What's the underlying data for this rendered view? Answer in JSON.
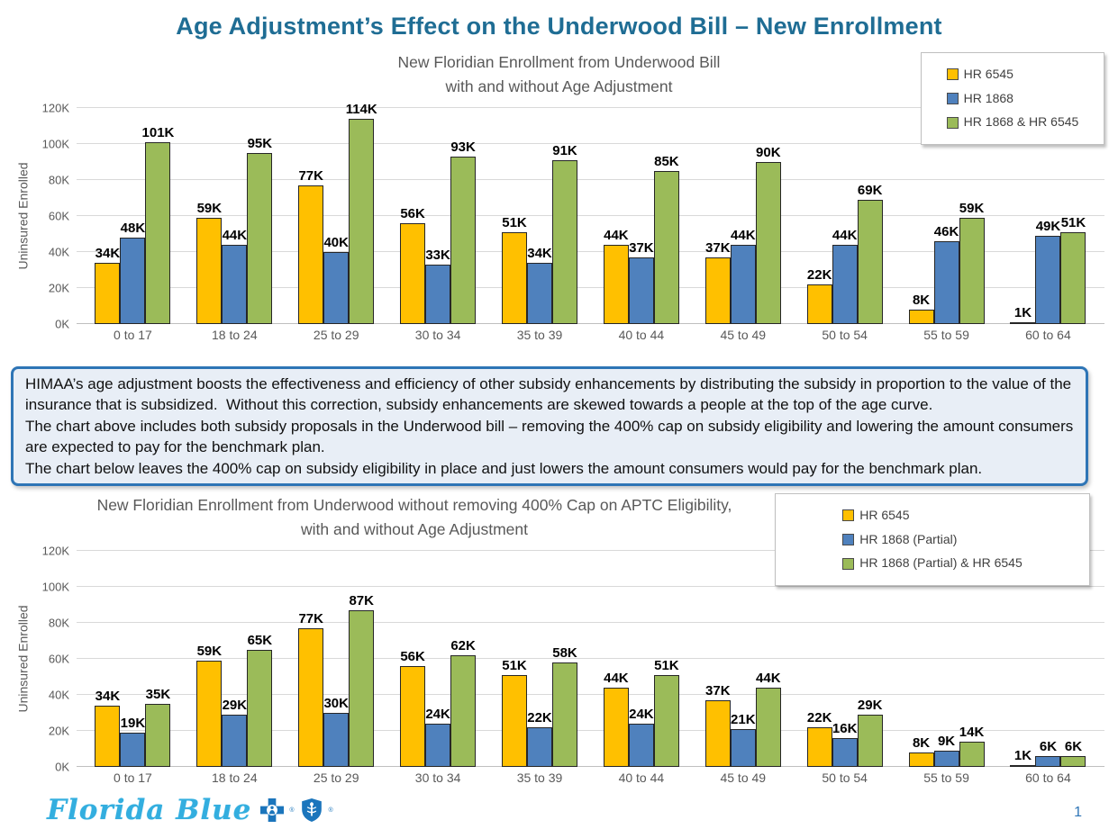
{
  "page": {
    "title": "Age Adjustment’s Effect on the Underwood Bill – New Enrollment",
    "page_number": "1",
    "logo_text": "Florida Blue",
    "registered_mark": "®"
  },
  "note_box": {
    "lines": [
      "HIMAA’s age adjustment boosts the effectiveness and efficiency of other subsidy enhancements by distributing the subsidy in proportion to the value of the insurance that is subsidized.  Without this correction, subsidy enhancements are skewed towards a people at the top of the age curve.",
      "The chart above includes both subsidy proposals in the Underwood bill – removing the 400% cap on subsidy eligibility and lowering the amount consumers are expected to pay for the benchmark plan.",
      "The chart below leaves the 400% cap on subsidy eligibility in place and just lowers the amount consumers would pay for the benchmark plan."
    ]
  },
  "chart_data": [
    {
      "type": "bar",
      "title_lines": [
        "New Floridian Enrollment from Underwood Bill",
        "with and without Age Adjustment"
      ],
      "ylabel": "Uninsured Enrolled",
      "unit": "thousands",
      "ylim": [
        0,
        120
      ],
      "yticks": [
        "0K",
        "20K",
        "40K",
        "60K",
        "80K",
        "100K",
        "120K"
      ],
      "grid": true,
      "legend_position": "top-right",
      "categories": [
        "0 to 17",
        "18 to 24",
        "25 to 29",
        "30 to 34",
        "35 to 39",
        "40 to 44",
        "45 to 49",
        "50 to 54",
        "55 to 59",
        "60 to 64"
      ],
      "series": [
        {
          "name": "HR 6545",
          "color": "#FFC000",
          "values": [
            34,
            59,
            77,
            56,
            51,
            44,
            37,
            22,
            8,
            1
          ],
          "labels": [
            "34K",
            "59K",
            "77K",
            "56K",
            "51K",
            "44K",
            "37K",
            "22K",
            "8K",
            "1K"
          ]
        },
        {
          "name": "HR 1868",
          "color": "#4F81BD",
          "values": [
            48,
            44,
            40,
            33,
            34,
            37,
            44,
            44,
            46,
            49
          ],
          "labels": [
            "48K",
            "44K",
            "40K",
            "33K",
            "34K",
            "37K",
            "44K",
            "44K",
            "46K",
            "49K"
          ]
        },
        {
          "name": "HR 1868 & HR 6545",
          "color": "#9BBB59",
          "values": [
            101,
            95,
            114,
            93,
            91,
            85,
            90,
            69,
            59,
            51
          ],
          "labels": [
            "101K",
            "95K",
            "114K",
            "93K",
            "91K",
            "85K",
            "90K",
            "69K",
            "59K",
            "51K"
          ]
        }
      ]
    },
    {
      "type": "bar",
      "title_lines": [
        "New Floridian Enrollment from Underwood without removing 400% Cap on APTC Eligibility,",
        "with and without Age Adjustment"
      ],
      "ylabel": "Uninsured Enrolled",
      "unit": "thousands",
      "ylim": [
        0,
        120
      ],
      "yticks": [
        "0K",
        "20K",
        "40K",
        "60K",
        "80K",
        "100K",
        "120K"
      ],
      "grid": true,
      "legend_position": "top-right",
      "categories": [
        "0 to 17",
        "18 to 24",
        "25 to 29",
        "30 to 34",
        "35 to 39",
        "40 to 44",
        "45 to 49",
        "50 to 54",
        "55 to 59",
        "60 to 64"
      ],
      "series": [
        {
          "name": "HR 6545",
          "color": "#FFC000",
          "values": [
            34,
            59,
            77,
            56,
            51,
            44,
            37,
            22,
            8,
            1
          ],
          "labels": [
            "34K",
            "59K",
            "77K",
            "56K",
            "51K",
            "44K",
            "37K",
            "22K",
            "8K",
            "1K"
          ]
        },
        {
          "name": "HR 1868 (Partial)",
          "color": "#4F81BD",
          "values": [
            19,
            29,
            30,
            24,
            22,
            24,
            21,
            16,
            9,
            6
          ],
          "labels": [
            "19K",
            "29K",
            "30K",
            "24K",
            "22K",
            "24K",
            "21K",
            "16K",
            "9K",
            "6K"
          ]
        },
        {
          "name": "HR 1868 (Partial) & HR 6545",
          "color": "#9BBB59",
          "values": [
            35,
            65,
            87,
            62,
            58,
            51,
            44,
            29,
            14,
            6
          ],
          "labels": [
            "35K",
            "65K",
            "87K",
            "62K",
            "58K",
            "51K",
            "44K",
            "29K",
            "14K",
            "6K"
          ]
        }
      ]
    }
  ]
}
